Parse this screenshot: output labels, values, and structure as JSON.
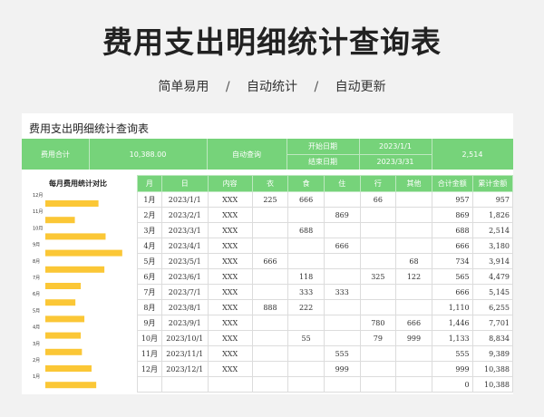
{
  "hero": {
    "title": "费用支出明细统计查询表",
    "tags": [
      "简单易用",
      "自动统计",
      "自动更新"
    ],
    "separator": "/"
  },
  "sheet": {
    "title": "费用支出明细统计查询表",
    "summary": {
      "total_label": "费用合计",
      "total_value": "10,388.00",
      "auto_query_label": "自动查询",
      "start_label": "开始日期",
      "start_value": "2023/1/1",
      "end_label": "结束日期",
      "end_value": "2023/3/31",
      "result_value": "2,514"
    }
  },
  "chart_data": {
    "type": "bar",
    "orientation": "horizontal",
    "title": "每月费用统计对比",
    "categories": [
      "12月",
      "11月",
      "10月",
      "9月",
      "8月",
      "7月",
      "6月",
      "5月",
      "4月",
      "3月",
      "2月",
      "1月"
    ],
    "values": [
      999,
      555,
      1133,
      1446,
      1110,
      666,
      565,
      734,
      666,
      688,
      869,
      957
    ],
    "xlim": [
      0,
      1500
    ],
    "bar_color": "#fbc736",
    "grid": false,
    "legend": "none"
  },
  "table": {
    "headers": [
      "月",
      "日",
      "内容",
      "衣",
      "食",
      "住",
      "行",
      "其他",
      "合计金额",
      "累计金额"
    ],
    "rows": [
      [
        "1月",
        "2023/1/1",
        "XXX",
        "225",
        "666",
        "",
        "66",
        "",
        "957",
        "957"
      ],
      [
        "2月",
        "2023/2/1",
        "XXX",
        "",
        "",
        "869",
        "",
        "",
        "869",
        "1,826"
      ],
      [
        "3月",
        "2023/3/1",
        "XXX",
        "",
        "688",
        "",
        "",
        "",
        "688",
        "2,514"
      ],
      [
        "4月",
        "2023/4/1",
        "XXX",
        "",
        "",
        "666",
        "",
        "",
        "666",
        "3,180"
      ],
      [
        "5月",
        "2023/5/1",
        "XXX",
        "666",
        "",
        "",
        "",
        "68",
        "734",
        "3,914"
      ],
      [
        "6月",
        "2023/6/1",
        "XXX",
        "",
        "118",
        "",
        "325",
        "122",
        "565",
        "4,479"
      ],
      [
        "7月",
        "2023/7/1",
        "XXX",
        "",
        "333",
        "333",
        "",
        "",
        "666",
        "5,145"
      ],
      [
        "8月",
        "2023/8/1",
        "XXX",
        "888",
        "222",
        "",
        "",
        "",
        "1,110",
        "6,255"
      ],
      [
        "9月",
        "2023/9/1",
        "XXX",
        "",
        "",
        "",
        "780",
        "666",
        "1,446",
        "7,701"
      ],
      [
        "10月",
        "2023/10/1",
        "XXX",
        "",
        "55",
        "",
        "79",
        "999",
        "1,133",
        "8,834"
      ],
      [
        "11月",
        "2023/11/1",
        "XXX",
        "",
        "",
        "555",
        "",
        "",
        "555",
        "9,389"
      ],
      [
        "12月",
        "2023/12/1",
        "XXX",
        "",
        "",
        "999",
        "",
        "",
        "999",
        "10,388"
      ],
      [
        "",
        "",
        "",
        "",
        "",
        "",
        "",
        "",
        "0",
        "10,388"
      ]
    ]
  },
  "colors": {
    "header_green": "#76d37a",
    "bar_yellow": "#fbc736",
    "background": "#f2f2f2"
  }
}
